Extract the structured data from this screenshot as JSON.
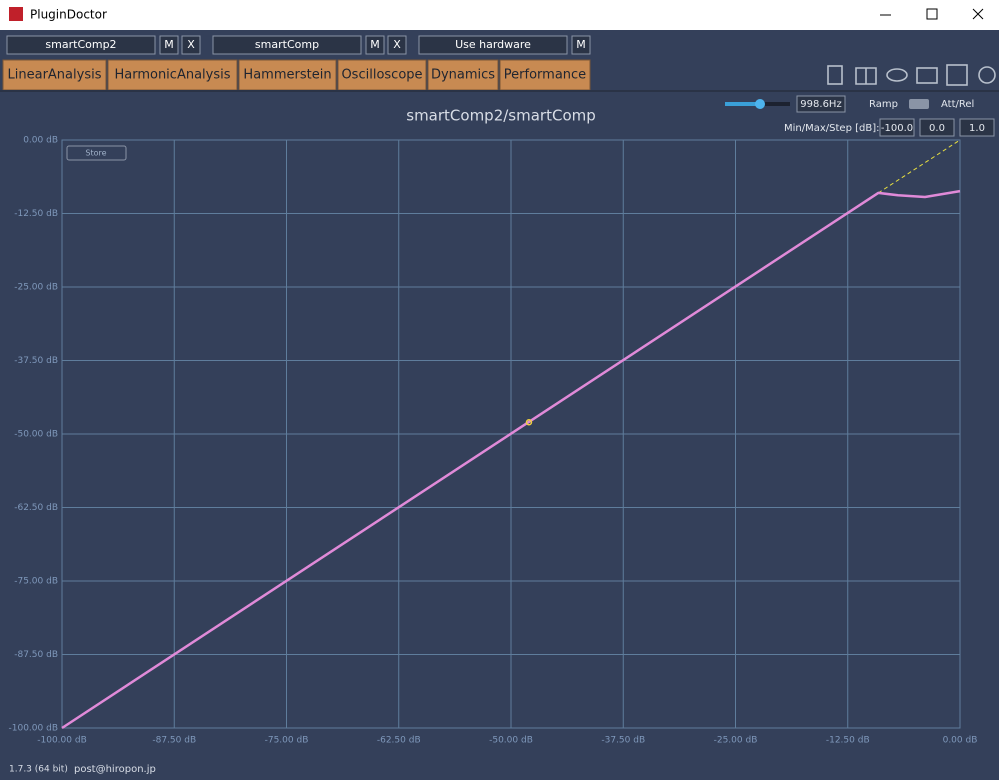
{
  "window": {
    "title": "PluginDoctor"
  },
  "toolbar": {
    "plugin_a": "smartComp2",
    "plugin_a_m": "M",
    "plugin_a_x": "X",
    "plugin_b": "smartComp",
    "plugin_b_m": "M",
    "plugin_b_x": "X",
    "hardware": "Use hardware",
    "hardware_m": "M"
  },
  "tabs": [
    "LinearAnalysis",
    "HarmonicAnalysis",
    "Hammerstein",
    "Oscilloscope",
    "Dynamics",
    "Performance"
  ],
  "controls": {
    "frequency": "998.6Hz",
    "ramp": "Ramp",
    "att_rel": "Att/Rel",
    "range_label": "Min/Max/Step [dB]:",
    "min": "-100.0",
    "max": "0.0",
    "step": "1.0",
    "store": "Store"
  },
  "footer": {
    "version": "1.7.3 (64 bit)",
    "email": "post@hiropon.jp"
  },
  "chart_data": {
    "type": "line",
    "title": "smartComp2/smartComp",
    "x": [
      -100,
      -9.1,
      -6.9,
      -3.9,
      0
    ],
    "series": [
      {
        "color": "#e08ad8",
        "values": [
          -100,
          -9.0,
          -9.4,
          -9.7,
          -8.7
        ]
      }
    ],
    "marker": {
      "x": -48,
      "y": -48
    },
    "guide": {
      "x": [
        -9.1,
        0
      ],
      "y": [
        -9.0,
        0
      ]
    },
    "xlim": [
      -100,
      0
    ],
    "ylim": [
      -100,
      0
    ],
    "xticks": [
      {
        "value": -100,
        "label": "-100.00 dB"
      },
      {
        "value": -87.5,
        "label": "-87.50 dB"
      },
      {
        "value": -75,
        "label": "-75.00 dB"
      },
      {
        "value": -62.5,
        "label": "-62.50 dB"
      },
      {
        "value": -50,
        "label": "-50.00 dB"
      },
      {
        "value": -37.5,
        "label": "-37.50 dB"
      },
      {
        "value": -25,
        "label": "-25.00 dB"
      },
      {
        "value": -12.5,
        "label": "-12.50 dB"
      },
      {
        "value": 0,
        "label": "0.00 dB"
      }
    ],
    "yticks": [
      {
        "value": 0,
        "label": "0.00 dB"
      },
      {
        "value": -12.5,
        "label": "-12.50 dB"
      },
      {
        "value": -25,
        "label": "-25.00 dB"
      },
      {
        "value": -37.5,
        "label": "-37.50 dB"
      },
      {
        "value": -50,
        "label": "-50.00 dB"
      },
      {
        "value": -62.5,
        "label": "-62.50 dB"
      },
      {
        "value": -75,
        "label": "-75.00 dB"
      },
      {
        "value": -87.5,
        "label": "-87.50 dB"
      },
      {
        "value": -100,
        "label": "-100.00 dB"
      }
    ],
    "grid": true
  }
}
